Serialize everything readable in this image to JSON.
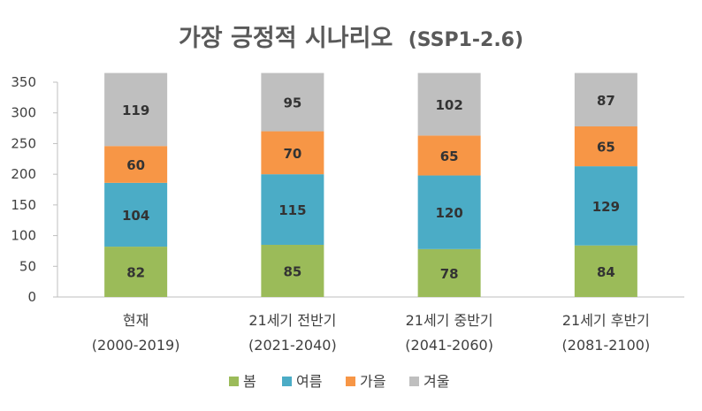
{
  "chart_data": {
    "type": "bar",
    "stacked": true,
    "title": "가장 긍정적 시나리오",
    "subtitle": "(SSP1-2.6)",
    "categories": [
      {
        "name": "현재",
        "period": "(2000-2019)"
      },
      {
        "name": "21세기 전반기",
        "period": "(2021-2040)"
      },
      {
        "name": "21세기 중반기",
        "period": "(2041-2060)"
      },
      {
        "name": "21세기 후반기",
        "period": "(2081-2100)"
      }
    ],
    "series": [
      {
        "name": "봄",
        "color": "#9bbb59",
        "values": [
          82,
          85,
          78,
          84
        ]
      },
      {
        "name": "여름",
        "color": "#4bacc6",
        "values": [
          104,
          115,
          120,
          129
        ]
      },
      {
        "name": "가을",
        "color": "#f79646",
        "values": [
          60,
          70,
          65,
          65
        ]
      },
      {
        "name": "겨울",
        "color": "#bfbfbf",
        "values": [
          119,
          95,
          102,
          87
        ]
      }
    ],
    "ylim": [
      0,
      350
    ],
    "yticks": [
      0,
      50,
      100,
      150,
      200,
      250,
      300,
      350
    ],
    "legend_position": "bottom",
    "grid": false
  }
}
